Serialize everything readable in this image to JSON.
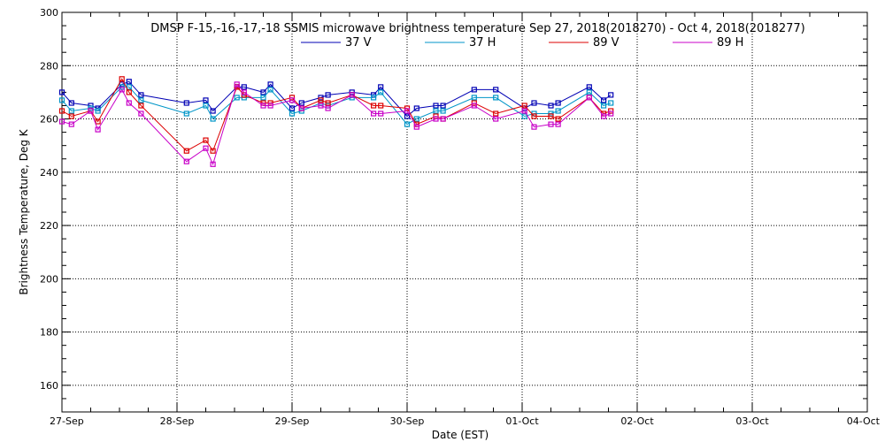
{
  "chart_data": {
    "type": "line",
    "title": "DMSP F-15,-16,-17,-18 SSMIS microwave brightness temperature Sep 27, 2018(2018270) - Oct  4, 2018(2018277)",
    "xlabel": "Date (EST)",
    "ylabel": "Brightness Temperature, Deg K",
    "ylim": [
      150,
      300
    ],
    "xlim": [
      "2018-09-27T00:00",
      "2018-10-04T00:00"
    ],
    "y_ticks": [
      "160",
      "180",
      "200",
      "220",
      "240",
      "260",
      "280",
      "300"
    ],
    "x_ticks": [
      "27-Sep",
      "28-Sep",
      "29-Sep",
      "30-Sep",
      "01-Oct",
      "02-Oct",
      "03-Oct",
      "04-Oct"
    ],
    "grid": true,
    "legend_position": "top-center",
    "x": [
      "2018-09-27T00:00",
      "2018-09-27T02:00",
      "2018-09-27T06:00",
      "2018-09-27T07:30",
      "2018-09-27T12:30",
      "2018-09-27T14:00",
      "2018-09-27T16:30",
      "2018-09-28T02:00",
      "2018-09-28T06:00",
      "2018-09-28T07:30",
      "2018-09-28T12:30",
      "2018-09-28T14:00",
      "2018-09-28T18:00",
      "2018-09-28T19:30",
      "2018-09-29T00:00",
      "2018-09-29T02:00",
      "2018-09-29T06:00",
      "2018-09-29T07:30",
      "2018-09-29T12:30",
      "2018-09-29T17:00",
      "2018-09-29T18:30",
      "2018-09-30T00:00",
      "2018-09-30T02:00",
      "2018-09-30T06:00",
      "2018-09-30T07:30",
      "2018-09-30T14:00",
      "2018-09-30T18:30",
      "2018-10-01T00:30",
      "2018-10-01T02:30",
      "2018-10-01T06:00",
      "2018-10-01T07:30",
      "2018-10-01T14:00",
      "2018-10-01T17:00",
      "2018-10-01T18:30"
    ],
    "series": [
      {
        "name": "37 V",
        "color": "#0000b4",
        "values": [
          270,
          266,
          265,
          264,
          273,
          274,
          269,
          266,
          267,
          263,
          272,
          272,
          270,
          273,
          264,
          266,
          268,
          269,
          270,
          269,
          272,
          261,
          264,
          265,
          265,
          271,
          271,
          264,
          266,
          265,
          266,
          272,
          267,
          269
        ]
      },
      {
        "name": "37 H",
        "color": "#0096c8",
        "values": [
          267,
          263,
          264,
          263,
          272,
          272,
          267,
          262,
          265,
          260,
          268,
          268,
          268,
          271,
          262,
          263,
          266,
          265,
          268,
          268,
          270,
          258,
          260,
          263,
          263,
          268,
          268,
          261,
          262,
          262,
          263,
          270,
          265,
          266
        ]
      },
      {
        "name": "89 V",
        "color": "#dc0000",
        "values": [
          263,
          261,
          263,
          259,
          275,
          270,
          265,
          248,
          252,
          248,
          272,
          269,
          266,
          266,
          268,
          264,
          267,
          266,
          269,
          265,
          265,
          264,
          258,
          261,
          260,
          266,
          262,
          265,
          261,
          261,
          260,
          268,
          262,
          263
        ]
      },
      {
        "name": "89 H",
        "color": "#c800c8",
        "values": [
          259,
          258,
          263,
          256,
          271,
          266,
          262,
          244,
          249,
          243,
          273,
          270,
          265,
          265,
          267,
          264,
          265,
          264,
          269,
          262,
          262,
          263,
          257,
          260,
          260,
          265,
          260,
          263,
          257,
          258,
          258,
          268,
          261,
          262
        ]
      }
    ]
  }
}
